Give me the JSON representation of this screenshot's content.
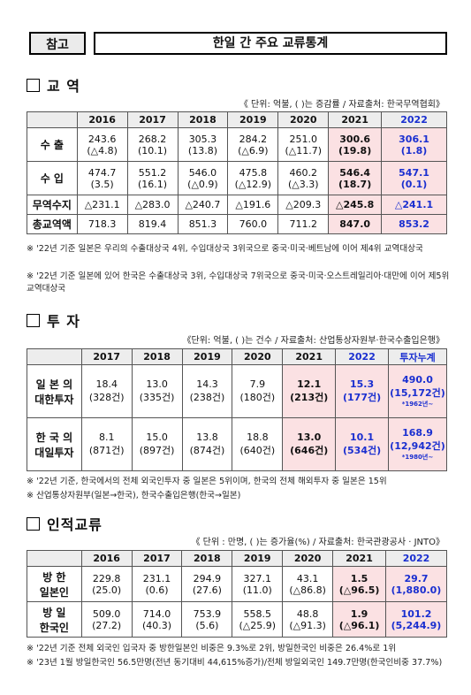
{
  "header": {
    "ref": "참고",
    "title": "한일 간 주요 교류통계"
  },
  "trade": {
    "title": "교  역",
    "unit": "《 단위: 억불, ( )는 증감률 / 자료출처: 한국무역협회》",
    "years": [
      "2016",
      "2017",
      "2018",
      "2019",
      "2020",
      "2021",
      "2022"
    ],
    "rows": [
      {
        "label": "수  출",
        "v": [
          "243.6",
          "268.2",
          "305.3",
          "284.2",
          "251.0",
          "300.6",
          "306.1"
        ],
        "s": [
          "(△4.8)",
          "(10.1)",
          "(13.8)",
          "(△6.9)",
          "(△11.7)",
          "(19.8)",
          "(1.8)"
        ]
      },
      {
        "label": "수  입",
        "v": [
          "474.7",
          "551.2",
          "546.0",
          "475.8",
          "460.2",
          "546.4",
          "547.1"
        ],
        "s": [
          "(3.5)",
          "(16.1)",
          "(△0.9)",
          "(△12.9)",
          "(△3.3)",
          "(18.7)",
          "(0.1)"
        ]
      },
      {
        "label": "무역수지",
        "v": [
          "△231.1",
          "△283.0",
          "△240.7",
          "△191.6",
          "△209.3",
          "△245.8",
          "△241.1"
        ]
      },
      {
        "label": "총교역액",
        "v": [
          "718.3",
          "819.4",
          "851.3",
          "760.0",
          "711.2",
          "847.0",
          "853.2"
        ]
      }
    ],
    "notes": [
      "※ '22년 기준 일본은 우리의 수출대상국 4위, 수입대상국 3위국으로 중국·미국·베트남에 이어 제4위 교역대상국",
      "※ '22년 기준 일본에 있어 한국은 수출대상국 3위, 수입대상국 7위국으로 중국·미국·오스트레일리아·대만에 이어 제5위 교역대상국"
    ]
  },
  "invest": {
    "title": "투  자",
    "unit": "《단위: 억불, ( )는 건수 / 자료출처: 산업통상자원부·한국수출입은행》",
    "years": [
      "2017",
      "2018",
      "2019",
      "2020",
      "2021",
      "2022",
      "투자누계"
    ],
    "rows": [
      {
        "label1": "일 본 의",
        "label2": "대한투자",
        "v": [
          "18.4",
          "13.0",
          "14.3",
          "7.9",
          "12.1",
          "15.3"
        ],
        "s": [
          "(328건)",
          "(335건)",
          "(238건)",
          "(180건)",
          "(213건)",
          "(177건)"
        ],
        "cum": "490.0",
        "cum_s": "(15,172건)",
        "cum_since": "*1962년~"
      },
      {
        "label1": "한 국 의",
        "label2": "대일투자",
        "v": [
          "8.1",
          "15.0",
          "13.8",
          "18.8",
          "13.0",
          "10.1"
        ],
        "s": [
          "(871건)",
          "(897건)",
          "(874건)",
          "(640건)",
          "(646건)",
          "(534건)"
        ],
        "cum": "168.9",
        "cum_s": "(12,942건)",
        "cum_since": "*1980년~"
      }
    ],
    "notes": [
      "※ '22년 기준, 한국에서의 전체 외국인투자 중 일본은 5위이며, 한국의 전체 해외투자 중 일본은 15위",
      "※ 산업통상자원부(일본→한국), 한국수출입은행(한국→일본)"
    ]
  },
  "people": {
    "title": "인적교류",
    "unit": "《 단위 : 만명, ( )는 증가율(%) / 자료출처: 한국관광공사 · JNTO》",
    "years": [
      "2016",
      "2017",
      "2018",
      "2019",
      "2020",
      "2021",
      "2022"
    ],
    "rows": [
      {
        "label1": "방  한",
        "label2": "일본인",
        "v": [
          "229.8",
          "231.1",
          "294.9",
          "327.1",
          "43.1",
          "1.5",
          "29.7"
        ],
        "s": [
          "(25.0)",
          "(0.6)",
          "(27.6)",
          "(11.0)",
          "(△86.8)",
          "(△96.5)",
          "(1,880.0)"
        ]
      },
      {
        "label1": "방  일",
        "label2": "한국인",
        "v": [
          "509.0",
          "714.0",
          "753.9",
          "558.5",
          "48.8",
          "1.9",
          "101.2"
        ],
        "s": [
          "(27.2)",
          "(40.3)",
          "(5.6)",
          "(△25.9)",
          "(△91.3)",
          "(△96.1)",
          "(5,244.9)"
        ]
      }
    ],
    "notes": [
      "※ '22년 기준 전체 외국인 입국자 중 방한일본인 비중은 9.3%로 2위, 방일한국인 비중은 26.4%로 1위",
      "※ '23년 1월 방일한국인 56.5만명(전년 동기대비 44,615%증가)/전체 방일외국인 149.7만명(한국인비중 37.7%)"
    ]
  }
}
